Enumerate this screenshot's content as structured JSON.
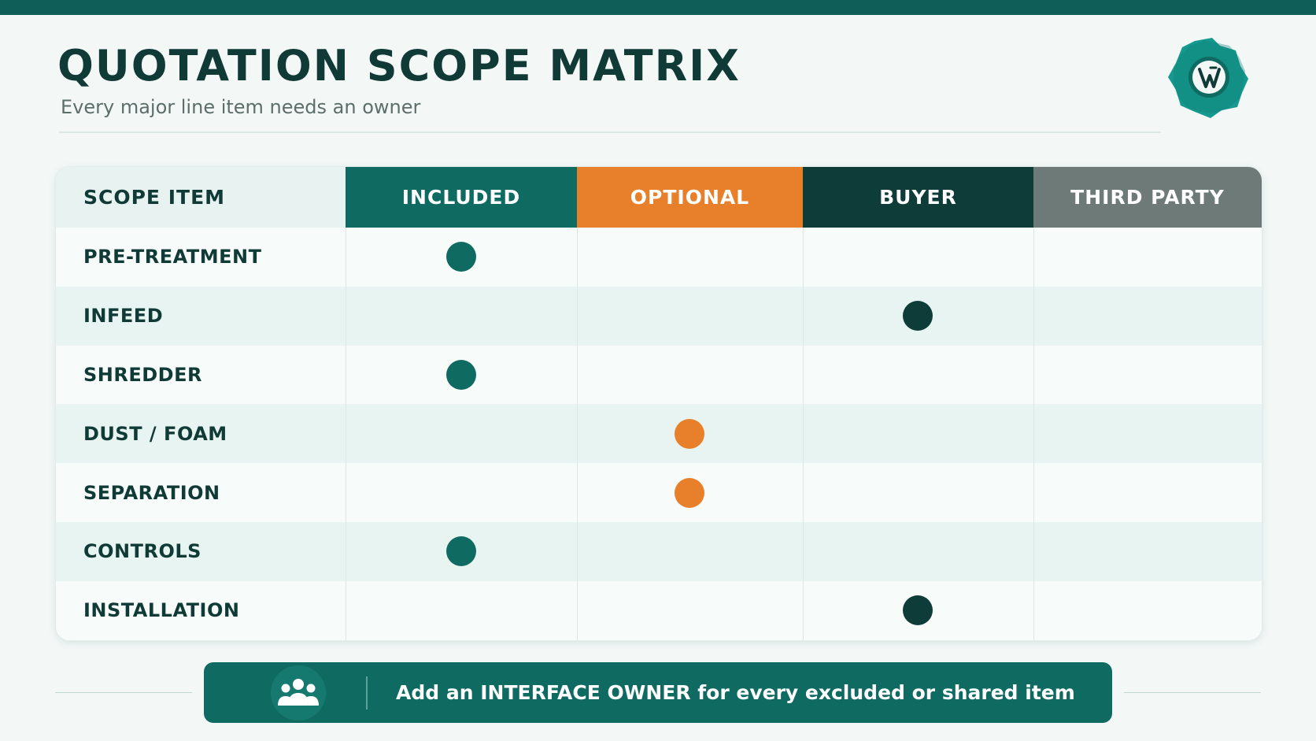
{
  "header": {
    "title": "QUOTATION SCOPE MATRIX",
    "subtitle": "Every major line item needs an owner",
    "logo_icon": "gear-logo-icon"
  },
  "matrix": {
    "columns": [
      {
        "key": "item",
        "label": "SCOPE ITEM"
      },
      {
        "key": "included",
        "label": "INCLUDED",
        "color": "#0f6b62"
      },
      {
        "key": "optional",
        "label": "OPTIONAL",
        "color": "#e8802b"
      },
      {
        "key": "buyer",
        "label": "BUYER",
        "color": "#0e3c39"
      },
      {
        "key": "third",
        "label": "THIRD PARTY",
        "color": "#6e7a78"
      }
    ],
    "rows": [
      {
        "label": "PRE-TREATMENT",
        "owner": "included"
      },
      {
        "label": "INFEED",
        "owner": "buyer"
      },
      {
        "label": "SHREDDER",
        "owner": "included"
      },
      {
        "label": "DUST / FOAM",
        "owner": "optional"
      },
      {
        "label": "SEPARATION",
        "owner": "optional"
      },
      {
        "label": "CONTROLS",
        "owner": "included"
      },
      {
        "label": "INSTALLATION",
        "owner": "buyer"
      }
    ],
    "row_colors": {
      "odd": "#f7fbfa",
      "even": "#e8f4f1"
    }
  },
  "banner": {
    "icon": "team-icon",
    "text": "Add an INTERFACE OWNER for every excluded or shared item"
  }
}
